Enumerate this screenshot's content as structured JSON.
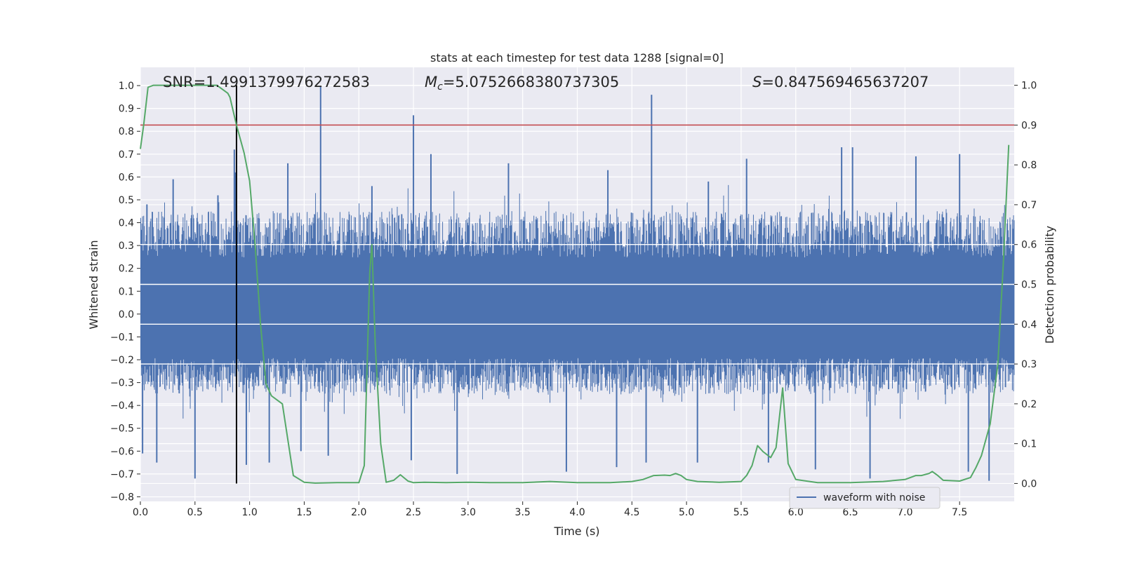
{
  "chart_data": {
    "type": "line",
    "title": "stats at each timestep for test data 1288 [signal=0]",
    "xlabel": "Time (s)",
    "ylabel_left": "Whitened strain",
    "ylabel_right": "Detection probability",
    "xlim": [
      0.0,
      8.0
    ],
    "ylim_left": [
      -0.82,
      1.08
    ],
    "ylim_right": [
      -0.045,
      1.045
    ],
    "x_ticks": [
      "0.0",
      "0.5",
      "1.0",
      "1.5",
      "2.0",
      "2.5",
      "3.0",
      "3.5",
      "4.0",
      "4.5",
      "5.0",
      "5.5",
      "6.0",
      "6.5",
      "7.0",
      "7.5"
    ],
    "y_ticks_left": [
      "-0.8",
      "-0.7",
      "-0.6",
      "-0.5",
      "-0.4",
      "-0.3",
      "-0.2",
      "-0.1",
      "0.0",
      "0.1",
      "0.2",
      "0.3",
      "0.4",
      "0.5",
      "0.6",
      "0.7",
      "0.8",
      "0.9",
      "1.0"
    ],
    "y_ticks_right": [
      "0.0",
      "0.1",
      "0.2",
      "0.3",
      "0.4",
      "0.5",
      "0.6",
      "0.7",
      "0.8",
      "0.9",
      "1.0"
    ],
    "grid": true,
    "legend_position": "lower-right",
    "annotations": {
      "snr": "SNR=1.4991379976272583",
      "mc_symbol": "M",
      "mc_subscript": "c",
      "mc_value": "=5.0752668380737305",
      "s_symbol": "S",
      "s_value": "=0.847569465637207"
    },
    "threshold_right": 0.9,
    "vertical_marker_x": 0.88,
    "colors": {
      "waveform": "#4c72b0",
      "probability": "#55a868",
      "threshold": "#c44e52",
      "marker": "#000000",
      "plot_bg": "#eaeaf2",
      "grid": "#ffffff"
    },
    "series": [
      {
        "name": "waveform with noise",
        "axis": "left",
        "kind": "noisy-strain",
        "envelope_typical": [
          -0.35,
          0.45
        ],
        "spikes": [
          {
            "x": 0.02,
            "y": -0.61
          },
          {
            "x": 0.06,
            "y": 0.48
          },
          {
            "x": 0.15,
            "y": -0.65
          },
          {
            "x": 0.3,
            "y": 0.59
          },
          {
            "x": 0.5,
            "y": -0.72
          },
          {
            "x": 0.71,
            "y": 0.52
          },
          {
            "x": 0.86,
            "y": 0.72
          },
          {
            "x": 0.87,
            "y": 0.62
          },
          {
            "x": 0.97,
            "y": -0.66
          },
          {
            "x": 1.18,
            "y": -0.65
          },
          {
            "x": 1.35,
            "y": 0.66
          },
          {
            "x": 1.47,
            "y": -0.6
          },
          {
            "x": 1.65,
            "y": 1.0
          },
          {
            "x": 1.72,
            "y": -0.62
          },
          {
            "x": 2.12,
            "y": 0.56
          },
          {
            "x": 2.48,
            "y": -0.64
          },
          {
            "x": 2.5,
            "y": 0.87
          },
          {
            "x": 2.66,
            "y": 0.7
          },
          {
            "x": 2.9,
            "y": -0.7
          },
          {
            "x": 3.37,
            "y": 0.66
          },
          {
            "x": 3.9,
            "y": -0.69
          },
          {
            "x": 4.28,
            "y": 0.63
          },
          {
            "x": 4.36,
            "y": -0.67
          },
          {
            "x": 4.63,
            "y": -0.65
          },
          {
            "x": 4.68,
            "y": 0.96
          },
          {
            "x": 5.1,
            "y": -0.65
          },
          {
            "x": 5.2,
            "y": 0.58
          },
          {
            "x": 5.55,
            "y": 0.68
          },
          {
            "x": 5.75,
            "y": -0.65
          },
          {
            "x": 6.18,
            "y": -0.68
          },
          {
            "x": 6.42,
            "y": 0.73
          },
          {
            "x": 6.52,
            "y": 0.73
          },
          {
            "x": 6.68,
            "y": -0.72
          },
          {
            "x": 7.1,
            "y": 0.69
          },
          {
            "x": 7.5,
            "y": 0.7
          },
          {
            "x": 7.58,
            "y": -0.69
          },
          {
            "x": 7.77,
            "y": -0.73
          }
        ]
      },
      {
        "name": "",
        "axis": "right",
        "x": [
          0.0,
          0.03,
          0.07,
          0.12,
          0.2,
          0.4,
          0.6,
          0.7,
          0.75,
          0.8,
          0.82,
          0.88,
          0.95,
          1.0,
          1.05,
          1.1,
          1.15,
          1.2,
          1.25,
          1.3,
          1.35,
          1.4,
          1.5,
          1.6,
          1.8,
          2.0,
          2.05,
          2.1,
          2.12,
          2.15,
          2.2,
          2.25,
          2.32,
          2.38,
          2.45,
          2.5,
          2.6,
          2.8,
          3.0,
          3.2,
          3.5,
          3.75,
          4.0,
          4.3,
          4.5,
          4.6,
          4.7,
          4.8,
          4.85,
          4.9,
          4.95,
          5.0,
          5.1,
          5.3,
          5.5,
          5.55,
          5.6,
          5.65,
          5.7,
          5.77,
          5.82,
          5.88,
          5.93,
          6.0,
          6.2,
          6.5,
          6.8,
          7.0,
          7.1,
          7.15,
          7.22,
          7.25,
          7.3,
          7.35,
          7.5,
          7.6,
          7.65,
          7.7,
          7.78,
          7.85,
          7.9,
          7.95
        ],
        "values": [
          0.84,
          0.9,
          0.995,
          1.0,
          1.0,
          1.0,
          1.0,
          1.0,
          0.99,
          0.98,
          0.97,
          0.9,
          0.83,
          0.76,
          0.6,
          0.4,
          0.25,
          0.22,
          0.21,
          0.2,
          0.11,
          0.02,
          0.003,
          0.001,
          0.002,
          0.002,
          0.045,
          0.53,
          0.6,
          0.35,
          0.1,
          0.003,
          0.008,
          0.022,
          0.006,
          0.002,
          0.003,
          0.002,
          0.003,
          0.002,
          0.002,
          0.005,
          0.002,
          0.002,
          0.005,
          0.01,
          0.02,
          0.021,
          0.02,
          0.025,
          0.02,
          0.01,
          0.005,
          0.003,
          0.005,
          0.02,
          0.045,
          0.095,
          0.08,
          0.065,
          0.09,
          0.24,
          0.05,
          0.01,
          0.002,
          0.002,
          0.005,
          0.01,
          0.02,
          0.02,
          0.025,
          0.03,
          0.02,
          0.008,
          0.006,
          0.015,
          0.04,
          0.07,
          0.15,
          0.3,
          0.55,
          0.85
        ]
      }
    ]
  }
}
